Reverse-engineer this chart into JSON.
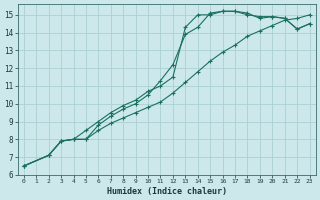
{
  "background_color": "#cce8ea",
  "grid_color": "#aacfd4",
  "line_color": "#1a7060",
  "xlabel": "Humidex (Indice chaleur)",
  "xlim": [
    -0.5,
    23.5
  ],
  "ylim": [
    6,
    15.6
  ],
  "yticks": [
    6,
    7,
    8,
    9,
    10,
    11,
    12,
    13,
    14,
    15
  ],
  "xticks": [
    0,
    1,
    2,
    3,
    4,
    5,
    6,
    7,
    8,
    9,
    10,
    11,
    12,
    13,
    14,
    15,
    16,
    17,
    18,
    19,
    20,
    21,
    22,
    23
  ],
  "s1_x": [
    0,
    2,
    3,
    4,
    5,
    6,
    7,
    8,
    9,
    10,
    11,
    12,
    13,
    14,
    15,
    16,
    17,
    18,
    19,
    20,
    21,
    22,
    23
  ],
  "s1_y": [
    6.5,
    7.1,
    7.9,
    8.0,
    8.0,
    8.8,
    9.3,
    9.7,
    10.0,
    10.5,
    11.3,
    12.2,
    13.9,
    14.3,
    15.1,
    15.2,
    15.2,
    15.1,
    14.8,
    14.9,
    14.8,
    14.2,
    14.5
  ],
  "s2_x": [
    0,
    2,
    3,
    4,
    5,
    6,
    7,
    8,
    9,
    10,
    11,
    12,
    13,
    14,
    15,
    16,
    17,
    18,
    19,
    20,
    21,
    22,
    23
  ],
  "s2_y": [
    6.5,
    7.1,
    7.9,
    8.0,
    8.5,
    9.0,
    9.5,
    9.9,
    10.2,
    10.7,
    11.0,
    11.5,
    14.3,
    15.0,
    15.0,
    15.2,
    15.2,
    15.0,
    14.9,
    14.9,
    14.8,
    14.2,
    14.5
  ],
  "s3_x": [
    0,
    2,
    3,
    4,
    5,
    6,
    7,
    8,
    9,
    10,
    11,
    12,
    13,
    14,
    15,
    16,
    17,
    18,
    19,
    20,
    21,
    22,
    23
  ],
  "s3_y": [
    6.5,
    7.1,
    7.9,
    8.0,
    8.0,
    8.5,
    8.9,
    9.2,
    9.5,
    9.8,
    10.1,
    10.6,
    11.2,
    11.8,
    12.4,
    12.9,
    13.3,
    13.8,
    14.1,
    14.4,
    14.7,
    14.8,
    15.0
  ]
}
